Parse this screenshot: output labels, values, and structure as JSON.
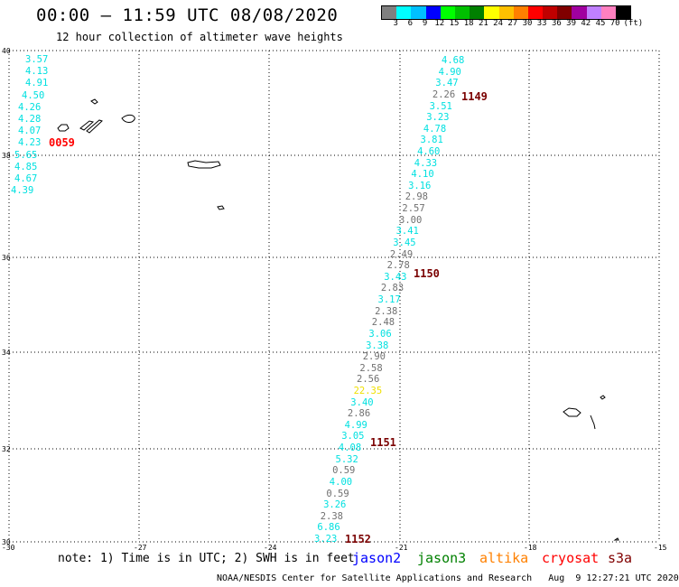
{
  "header": {
    "title": "00:00 — 11:59 UTC 08/08/2020",
    "subtitle": "12 hour collection of altimeter wave heights"
  },
  "legend": {
    "colors": [
      "#808080",
      "#00ffff",
      "#00c0ff",
      "#0000ff",
      "#00ff00",
      "#00c000",
      "#008000",
      "#ffff00",
      "#ffc000",
      "#ff8000",
      "#ff0000",
      "#c00000",
      "#800000",
      "#a000a0",
      "#c080ff",
      "#ff80c0",
      "#000000"
    ],
    "labels": [
      "3",
      "6",
      "9",
      "12",
      "15",
      "18",
      "21",
      "24",
      "27",
      "30",
      "33",
      "36",
      "39",
      "42",
      "45",
      "70",
      "(ft)"
    ]
  },
  "axes": {
    "lat_labels": [
      "40",
      "38",
      "36",
      "34",
      "32",
      "30"
    ],
    "lon_labels": [
      "-30",
      "-27",
      "-24",
      "-21",
      "-18",
      "-15"
    ]
  },
  "colors": {
    "cyan": "#00e0e0",
    "gray": "#707070",
    "yellow": "#f0e000",
    "red": "#ff0000",
    "darkred": "#7a0000"
  },
  "values": {
    "west": [
      "3.57",
      "4.13",
      "4.91",
      "4.50",
      "4.26",
      "4.28",
      "4.07",
      "4.23",
      "5.65",
      "4.85",
      "4.67",
      "4.39"
    ],
    "track": [
      {
        "v": "4.68",
        "c": "cyan"
      },
      {
        "v": "4.90",
        "c": "cyan"
      },
      {
        "v": "3.47",
        "c": "cyan"
      },
      {
        "v": "2.26",
        "c": "gray"
      },
      {
        "v": "3.51",
        "c": "cyan"
      },
      {
        "v": "3.23",
        "c": "cyan"
      },
      {
        "v": "4.78",
        "c": "cyan"
      },
      {
        "v": "3.81",
        "c": "cyan"
      },
      {
        "v": "4.60",
        "c": "cyan"
      },
      {
        "v": "4.33",
        "c": "cyan"
      },
      {
        "v": "4.10",
        "c": "cyan"
      },
      {
        "v": "3.16",
        "c": "cyan"
      },
      {
        "v": "2.98",
        "c": "gray"
      },
      {
        "v": "2.57",
        "c": "gray"
      },
      {
        "v": "3.00",
        "c": "gray"
      },
      {
        "v": "3.41",
        "c": "cyan"
      },
      {
        "v": "3.45",
        "c": "cyan"
      },
      {
        "v": "2.49",
        "c": "gray"
      },
      {
        "v": "2.78",
        "c": "gray"
      },
      {
        "v": "3.43",
        "c": "cyan"
      },
      {
        "v": "2.83",
        "c": "gray"
      },
      {
        "v": "3.17",
        "c": "cyan"
      },
      {
        "v": "2.38",
        "c": "gray"
      },
      {
        "v": "2.48",
        "c": "gray"
      },
      {
        "v": "3.06",
        "c": "cyan"
      },
      {
        "v": "3.38",
        "c": "cyan"
      },
      {
        "v": "2.90",
        "c": "gray"
      },
      {
        "v": "2.58",
        "c": "gray"
      },
      {
        "v": "2.56",
        "c": "gray"
      },
      {
        "v": "22.35",
        "c": "yellow"
      },
      {
        "v": "3.40",
        "c": "cyan"
      },
      {
        "v": "2.86",
        "c": "gray"
      },
      {
        "v": "4.99",
        "c": "cyan"
      },
      {
        "v": "3.05",
        "c": "cyan"
      },
      {
        "v": "4.08",
        "c": "cyan"
      },
      {
        "v": "5.32",
        "c": "cyan"
      },
      {
        "v": "0.59",
        "c": "gray"
      },
      {
        "v": "4.00",
        "c": "cyan"
      },
      {
        "v": "0.59",
        "c": "gray"
      },
      {
        "v": "3.26",
        "c": "cyan"
      },
      {
        "v": "2.38",
        "c": "gray"
      },
      {
        "v": "6.86",
        "c": "cyan"
      },
      {
        "v": "3.23",
        "c": "cyan"
      }
    ]
  },
  "time_marks": [
    {
      "t": "0059",
      "c": "red"
    },
    {
      "t": "1149",
      "c": "darkred"
    },
    {
      "t": "1150",
      "c": "darkred"
    },
    {
      "t": "1151",
      "c": "darkred"
    },
    {
      "t": "1152",
      "c": "darkred"
    }
  ],
  "note": "note: 1) Time is in UTC; 2) SWH is in feet",
  "satellites": [
    {
      "name": "jason2",
      "color": "#0000ff"
    },
    {
      "name": "jason3",
      "color": "#008000"
    },
    {
      "name": "altika",
      "color": "#ff8000"
    },
    {
      "name": "cryosat",
      "color": "#ff0000"
    },
    {
      "name": "s3a",
      "color": "#800000"
    }
  ],
  "footer": "NOAA/NESDIS Center for Satellite Applications and Research   Aug  9 12:27:21 UTC 2020"
}
